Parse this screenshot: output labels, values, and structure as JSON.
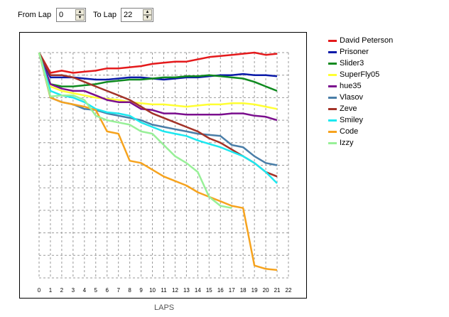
{
  "controls": {
    "from_label": "From Lap",
    "from_value": "0",
    "to_label": "To Lap",
    "to_value": "22"
  },
  "chart_data": {
    "type": "line",
    "xlabel": "LAPS",
    "ylabel": "",
    "x": [
      0,
      1,
      2,
      3,
      4,
      5,
      6,
      7,
      8,
      9,
      10,
      11,
      12,
      13,
      14,
      15,
      16,
      17,
      18,
      19,
      20,
      21,
      22
    ],
    "xlim": [
      0,
      22
    ],
    "ylim": [
      0,
      10
    ],
    "grid": true,
    "legend_position": "right",
    "series": [
      {
        "name": "David Peterson",
        "color": "#e41a1c",
        "x": [
          0,
          1,
          2,
          3,
          4,
          5,
          6,
          7,
          8,
          9,
          10,
          11,
          12,
          13,
          14,
          15,
          16,
          17,
          18,
          19,
          20,
          21
        ],
        "values": [
          10,
          9.1,
          9.2,
          9.1,
          9.15,
          9.2,
          9.3,
          9.3,
          9.35,
          9.4,
          9.5,
          9.55,
          9.6,
          9.6,
          9.7,
          9.8,
          9.85,
          9.9,
          9.95,
          10,
          9.9,
          9.95
        ]
      },
      {
        "name": "Prisoner",
        "color": "#0a1aa8",
        "x": [
          0,
          1,
          2,
          3,
          4,
          5,
          6,
          7,
          8,
          9,
          10,
          11,
          12,
          13,
          14,
          15,
          16,
          17,
          18,
          19,
          20,
          21
        ],
        "values": [
          10,
          8.9,
          8.9,
          8.9,
          8.85,
          8.8,
          8.8,
          8.85,
          8.9,
          8.9,
          8.85,
          8.8,
          8.85,
          8.9,
          8.9,
          8.95,
          9,
          9,
          9.05,
          9,
          9,
          8.95
        ]
      },
      {
        "name": "Slider3",
        "color": "#0f8a1f",
        "x": [
          0,
          1,
          2,
          3,
          4,
          5,
          6,
          7,
          8,
          9,
          10,
          11,
          12,
          13,
          14,
          15,
          16,
          17,
          18,
          19,
          20,
          21
        ],
        "values": [
          10,
          8.6,
          8.5,
          8.5,
          8.55,
          8.6,
          8.7,
          8.75,
          8.8,
          8.8,
          8.85,
          8.9,
          8.9,
          8.95,
          8.95,
          9,
          8.95,
          8.9,
          8.85,
          8.7,
          8.5,
          8.3
        ]
      },
      {
        "name": "SuperFly05",
        "color": "#ffff33",
        "x": [
          0,
          1,
          2,
          3,
          4,
          5,
          6,
          7,
          8,
          9,
          10,
          11,
          12,
          13,
          14,
          15,
          16,
          17,
          18,
          19,
          20,
          21
        ],
        "values": [
          10,
          8.5,
          8.3,
          8.2,
          8.1,
          8,
          7.95,
          7.9,
          7.8,
          7.75,
          7.7,
          7.7,
          7.65,
          7.6,
          7.65,
          7.7,
          7.7,
          7.75,
          7.75,
          7.7,
          7.6,
          7.5
        ]
      },
      {
        "name": "hue35",
        "color": "#7b0f8e",
        "x": [
          0,
          1,
          2,
          3,
          4,
          5,
          6,
          7,
          8,
          9,
          10,
          11,
          12,
          13,
          14,
          15,
          16,
          17,
          18,
          19,
          20,
          21
        ],
        "values": [
          10,
          8.6,
          8.4,
          8.3,
          8.3,
          8.1,
          7.9,
          7.8,
          7.8,
          7.5,
          7.45,
          7.3,
          7.3,
          7.25,
          7.25,
          7.25,
          7.25,
          7.3,
          7.3,
          7.2,
          7.15,
          7
        ]
      },
      {
        "name": "Vlasov",
        "color": "#4a7ea8",
        "x": [
          0,
          1,
          2,
          3,
          4,
          5,
          6,
          7,
          8,
          9,
          10,
          11,
          12,
          13,
          14,
          15,
          16,
          17,
          18,
          19,
          20,
          21
        ],
        "values": [
          10,
          8,
          7.8,
          7.7,
          7.5,
          7.45,
          7.3,
          7.2,
          7.1,
          7,
          6.8,
          6.7,
          6.6,
          6.5,
          6.4,
          6.35,
          6.3,
          5.9,
          5.8,
          5.4,
          5.1,
          5
        ]
      },
      {
        "name": "Zeve",
        "color": "#a33328",
        "x": [
          0,
          1,
          2,
          3,
          4,
          5,
          6,
          7,
          8,
          9,
          10,
          11,
          12,
          13,
          14,
          15,
          16,
          17,
          18,
          19,
          20,
          21
        ],
        "values": [
          10,
          9,
          9,
          8.9,
          8.7,
          8.5,
          8.3,
          8.1,
          7.9,
          7.6,
          7.3,
          7.1,
          6.9,
          6.7,
          6.5,
          6.2,
          6,
          5.7,
          5.4,
          5.1,
          4.7,
          4.5
        ]
      },
      {
        "name": "Smiley",
        "color": "#1ce8f0",
        "x": [
          0,
          1,
          2,
          3,
          4,
          5,
          6,
          7,
          8,
          9,
          10,
          11,
          12,
          13,
          14,
          15,
          16,
          17,
          18,
          19,
          20,
          21
        ],
        "values": [
          10,
          8.3,
          8.1,
          8,
          7.8,
          7.5,
          7.35,
          7.3,
          7.2,
          6.9,
          6.7,
          6.5,
          6.4,
          6.3,
          6.1,
          5.95,
          5.8,
          5.6,
          5.4,
          5.1,
          4.7,
          4.2
        ]
      },
      {
        "name": "Code",
        "color": "#f6a31e",
        "x": [
          0,
          1,
          2,
          3,
          4,
          5,
          6,
          7,
          8,
          9,
          10,
          11,
          12,
          13,
          14,
          15,
          16,
          17,
          18,
          19,
          20,
          21
        ],
        "values": [
          10,
          8,
          7.8,
          7.7,
          7.6,
          7.45,
          6.5,
          6.4,
          5.2,
          5.1,
          4.8,
          4.5,
          4.3,
          4.1,
          3.8,
          3.6,
          3.4,
          3.2,
          3.1,
          0.55,
          0.4,
          0.35
        ]
      },
      {
        "name": "Izzy",
        "color": "#98f098",
        "x": [
          0,
          1,
          2,
          3,
          4,
          5,
          6,
          7,
          8,
          9,
          10,
          11,
          12,
          13,
          14,
          15,
          16,
          17
        ],
        "values": [
          10,
          8.05,
          8.1,
          8.1,
          7.9,
          7.2,
          7,
          6.9,
          6.8,
          6.5,
          6.4,
          5.9,
          5.4,
          5.1,
          4.7,
          3.6,
          3.2,
          3.1
        ]
      }
    ]
  }
}
